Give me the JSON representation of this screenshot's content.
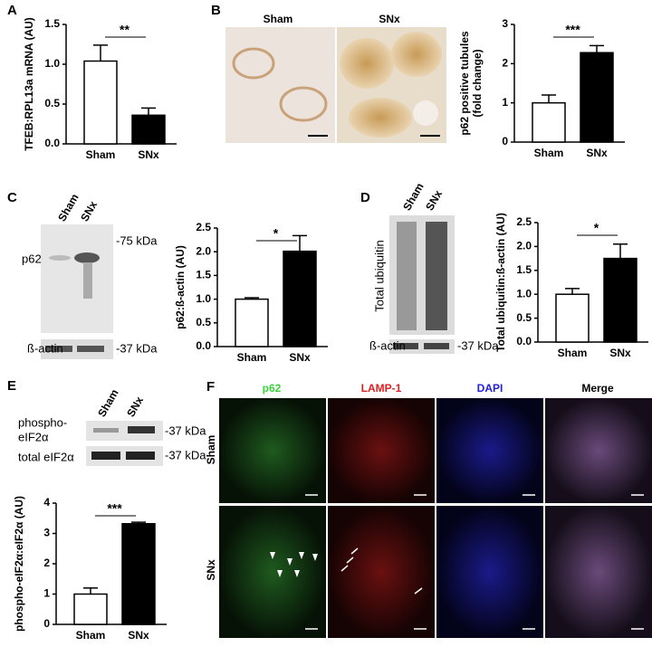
{
  "chart_data": [
    {
      "type": "bar",
      "panel": "A",
      "ylabel": [
        "TFEB:RPL13a mRNA (AU)"
      ],
      "categories": [
        "Sham",
        "SNx"
      ],
      "values": [
        1.04,
        0.36
      ],
      "errors": [
        0.2,
        0.09
      ],
      "colors": [
        "#ffffff",
        "#000000"
      ],
      "ylim": [
        0,
        1.5
      ],
      "yticks": [
        {
          "value": 0,
          "label": "0.0"
        },
        0.5,
        {
          "value": 1,
          "label": "1.0"
        },
        1.5
      ],
      "significance": "**"
    },
    {
      "type": "bar",
      "panel": "B",
      "ylabel": [
        "p62 positive tubules",
        "(fold change)"
      ],
      "categories": [
        "Sham",
        "SNx"
      ],
      "values": [
        1.0,
        2.28
      ],
      "errors": [
        0.2,
        0.18
      ],
      "colors": [
        "#ffffff",
        "#000000"
      ],
      "ylim": [
        0,
        3
      ],
      "yticks": [
        0,
        1,
        2,
        3
      ],
      "significance": "***"
    },
    {
      "type": "bar",
      "panel": "C",
      "ylabel": [
        "p62:ß-actin (AU)"
      ],
      "categories": [
        "Sham",
        "SNx"
      ],
      "values": [
        1.0,
        2.01
      ],
      "errors": [
        0.03,
        0.33
      ],
      "colors": [
        "#ffffff",
        "#000000"
      ],
      "ylim": [
        0,
        2.5
      ],
      "yticks": [
        {
          "value": 0,
          "label": "0.0"
        },
        0.5,
        {
          "value": 1,
          "label": "1.0"
        },
        1.5,
        {
          "value": 2,
          "label": "2.0"
        },
        2.5
      ],
      "significance": "*"
    },
    {
      "type": "bar",
      "panel": "D",
      "ylabel": [
        "Total ubiquitin:ß-actin (AU)"
      ],
      "categories": [
        "Sham",
        "SNx"
      ],
      "values": [
        1.0,
        1.75
      ],
      "errors": [
        0.12,
        0.3
      ],
      "colors": [
        "#ffffff",
        "#000000"
      ],
      "ylim": [
        0,
        2.5
      ],
      "yticks": [
        {
          "value": 0,
          "label": "0.0"
        },
        0.5,
        {
          "value": 1,
          "label": "1.0"
        },
        1.5,
        {
          "value": 2,
          "label": "2.0"
        },
        2.5
      ],
      "significance": "*"
    },
    {
      "type": "bar",
      "panel": "E",
      "ylabel": [
        "phospho-eIF2α:eIF2α (AU)"
      ],
      "categories": [
        "Sham",
        "SNx"
      ],
      "values": [
        1.0,
        3.32
      ],
      "errors": [
        0.2,
        0.05
      ],
      "colors": [
        "#ffffff",
        "#000000"
      ],
      "ylim": [
        0,
        4
      ],
      "yticks": [
        0,
        1,
        2,
        3,
        4
      ],
      "significance": "***"
    }
  ],
  "images": {
    "B": {
      "labels": [
        "Sham",
        "SNx"
      ]
    },
    "C": {
      "lanes": [
        "Sham",
        "SNx"
      ],
      "proteins": [
        "p62",
        "ß-actin"
      ],
      "markers": [
        "-75 kDa",
        "-37 kDa"
      ]
    },
    "D": {
      "lanes": [
        "Sham",
        "SNx"
      ],
      "proteins": [
        "Total ubiquitin",
        "ß-actin"
      ],
      "markers": [
        "-37 kDa"
      ]
    },
    "E": {
      "lanes": [
        "Sham",
        "SNx"
      ],
      "proteins": [
        "phospho-",
        "eIF2α",
        "total eIF2α"
      ],
      "markers": [
        "-37 kDa",
        "-37 kDa"
      ]
    },
    "F": {
      "panel": "F",
      "columns": [
        "p62",
        "LAMP-1",
        "DAPI",
        "Merge"
      ],
      "rows": [
        "Sham",
        "SNx"
      ]
    }
  }
}
